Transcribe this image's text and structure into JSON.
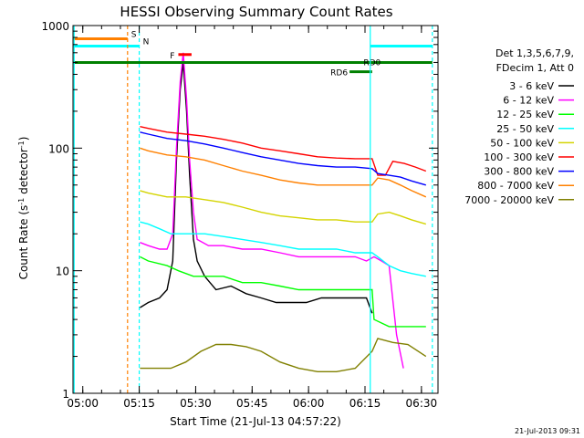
{
  "chart_data": {
    "type": "line",
    "title": "HESSI Observing Summary Count Rates",
    "xlabel": "Start Time (21-Jul-13 04:57:22)",
    "ylabel_main": "Count Rate (s",
    "ylabel_sup1": "-1",
    "ylabel_mid": " detector",
    "ylabel_sup2": "-1",
    "ylabel_end": ")",
    "x_unit": "minutes since 04:57:22",
    "xlim": [
      0,
      97
    ],
    "ylim": [
      1,
      1000
    ],
    "yscale": "log",
    "x_ticks": [
      {
        "label": "05:00",
        "t": 2.6
      },
      {
        "label": "05:15",
        "t": 17.6
      },
      {
        "label": "05:30",
        "t": 32.6
      },
      {
        "label": "05:45",
        "t": 47.6
      },
      {
        "label": "06:00",
        "t": 62.6
      },
      {
        "label": "06:15",
        "t": 77.6
      },
      {
        "label": "06:30",
        "t": 92.6
      }
    ],
    "y_ticks": [
      {
        "label": "1",
        "value": 1
      },
      {
        "label": "10",
        "value": 10
      },
      {
        "label": "100",
        "value": 100
      },
      {
        "label": "1000",
        "value": 1000
      }
    ],
    "legend_header_1": "Det 1,3,5,6,7,9,",
    "legend_header_2": "FDecim 1, Att 0",
    "legend_position": "right",
    "series": [
      {
        "name": "3 - 6 keV",
        "color": "#000000",
        "points": [
          [
            17.8,
            5
          ],
          [
            20,
            5.5
          ],
          [
            23,
            6
          ],
          [
            25,
            7
          ],
          [
            26.5,
            12
          ],
          [
            27.5,
            80
          ],
          [
            28.5,
            300
          ],
          [
            29.3,
            500
          ],
          [
            30.2,
            200
          ],
          [
            31,
            60
          ],
          [
            32,
            18
          ],
          [
            33,
            12
          ],
          [
            35,
            9
          ],
          [
            38,
            7
          ],
          [
            42,
            7.5
          ],
          [
            46,
            6.5
          ],
          [
            50,
            6
          ],
          [
            54,
            5.5
          ],
          [
            58,
            5.5
          ],
          [
            62,
            5.5
          ],
          [
            66,
            6
          ],
          [
            70,
            6
          ],
          [
            74,
            6
          ],
          [
            78,
            6
          ],
          [
            79.5,
            4.5
          ]
        ]
      },
      {
        "name": "6 - 12 keV",
        "color": "#ff00ff",
        "points": [
          [
            17.8,
            17
          ],
          [
            20,
            16
          ],
          [
            23,
            15
          ],
          [
            25,
            15
          ],
          [
            26.5,
            20
          ],
          [
            27.5,
            100
          ],
          [
            28.5,
            350
          ],
          [
            29.3,
            600
          ],
          [
            30.2,
            250
          ],
          [
            31,
            80
          ],
          [
            32,
            30
          ],
          [
            33,
            18
          ],
          [
            36,
            16
          ],
          [
            40,
            16
          ],
          [
            45,
            15
          ],
          [
            50,
            15
          ],
          [
            55,
            14
          ],
          [
            60,
            13
          ],
          [
            65,
            13
          ],
          [
            70,
            13
          ],
          [
            75,
            13
          ],
          [
            78,
            12
          ],
          [
            80,
            13
          ],
          [
            82,
            12
          ],
          [
            84,
            11
          ],
          [
            86,
            3
          ],
          [
            87.8,
            1.6
          ]
        ]
      },
      {
        "name": "12 - 25 keV",
        "color": "#00ff00",
        "points": [
          [
            17.8,
            13
          ],
          [
            20,
            12
          ],
          [
            25,
            11
          ],
          [
            28,
            10
          ],
          [
            32,
            9
          ],
          [
            36,
            9
          ],
          [
            40,
            9
          ],
          [
            45,
            8
          ],
          [
            50,
            8
          ],
          [
            55,
            7.5
          ],
          [
            60,
            7
          ],
          [
            65,
            7
          ],
          [
            70,
            7
          ],
          [
            75,
            7
          ],
          [
            79.5,
            7
          ],
          [
            80,
            4
          ],
          [
            84,
            3.5
          ],
          [
            87,
            3.5
          ],
          [
            90,
            3.5
          ],
          [
            93.8,
            3.5
          ]
        ]
      },
      {
        "name": "25 - 50 keV",
        "color": "#00ffff",
        "points": [
          [
            17.8,
            25
          ],
          [
            20,
            24
          ],
          [
            23,
            22
          ],
          [
            26,
            20
          ],
          [
            30,
            20
          ],
          [
            35,
            20
          ],
          [
            40,
            19
          ],
          [
            45,
            18
          ],
          [
            50,
            17
          ],
          [
            55,
            16
          ],
          [
            60,
            15
          ],
          [
            65,
            15
          ],
          [
            70,
            15
          ],
          [
            75,
            14
          ],
          [
            79.5,
            14
          ],
          [
            81,
            13
          ],
          [
            84,
            11
          ],
          [
            87,
            10
          ],
          [
            90,
            9.5
          ],
          [
            93.8,
            9
          ]
        ]
      },
      {
        "name": "50 - 100 keV",
        "color": "#d4d400",
        "points": [
          [
            17.8,
            45
          ],
          [
            20,
            43
          ],
          [
            25,
            40
          ],
          [
            30,
            40
          ],
          [
            35,
            38
          ],
          [
            40,
            36
          ],
          [
            45,
            33
          ],
          [
            50,
            30
          ],
          [
            55,
            28
          ],
          [
            60,
            27
          ],
          [
            65,
            26
          ],
          [
            70,
            26
          ],
          [
            75,
            25
          ],
          [
            79.5,
            25
          ],
          [
            81,
            29
          ],
          [
            84,
            30
          ],
          [
            87,
            28
          ],
          [
            90,
            26
          ],
          [
            93.8,
            24
          ]
        ]
      },
      {
        "name": "100 - 300 keV",
        "color": "#ff0000",
        "points": [
          [
            17.8,
            150
          ],
          [
            20,
            145
          ],
          [
            25,
            135
          ],
          [
            30,
            130
          ],
          [
            35,
            125
          ],
          [
            40,
            118
          ],
          [
            45,
            110
          ],
          [
            50,
            100
          ],
          [
            55,
            95
          ],
          [
            60,
            90
          ],
          [
            65,
            85
          ],
          [
            70,
            83
          ],
          [
            75,
            82
          ],
          [
            79.5,
            82
          ],
          [
            81,
            60
          ],
          [
            83,
            60
          ],
          [
            85,
            78
          ],
          [
            88,
            75
          ],
          [
            91,
            70
          ],
          [
            93.8,
            65
          ]
        ]
      },
      {
        "name": "300 - 800 keV",
        "color": "#0000ff",
        "points": [
          [
            17.8,
            135
          ],
          [
            20,
            130
          ],
          [
            25,
            120
          ],
          [
            30,
            115
          ],
          [
            35,
            108
          ],
          [
            40,
            100
          ],
          [
            45,
            92
          ],
          [
            50,
            85
          ],
          [
            55,
            80
          ],
          [
            60,
            75
          ],
          [
            65,
            72
          ],
          [
            70,
            70
          ],
          [
            75,
            70
          ],
          [
            79.5,
            68
          ],
          [
            81,
            62
          ],
          [
            84,
            60
          ],
          [
            87,
            58
          ],
          [
            90,
            54
          ],
          [
            93.8,
            50
          ]
        ]
      },
      {
        "name": "800 - 7000 keV",
        "color": "#ff8000",
        "points": [
          [
            17.8,
            100
          ],
          [
            20,
            95
          ],
          [
            25,
            88
          ],
          [
            30,
            85
          ],
          [
            35,
            80
          ],
          [
            40,
            72
          ],
          [
            45,
            65
          ],
          [
            50,
            60
          ],
          [
            55,
            55
          ],
          [
            60,
            52
          ],
          [
            65,
            50
          ],
          [
            70,
            50
          ],
          [
            75,
            50
          ],
          [
            79.5,
            50
          ],
          [
            81,
            57
          ],
          [
            84,
            55
          ],
          [
            87,
            50
          ],
          [
            90,
            45
          ],
          [
            93.8,
            40
          ]
        ]
      },
      {
        "name": "7000 - 20000 keV",
        "color": "#808000",
        "points": [
          [
            17.8,
            1.6
          ],
          [
            22,
            1.6
          ],
          [
            26,
            1.6
          ],
          [
            30,
            1.8
          ],
          [
            34,
            2.2
          ],
          [
            38,
            2.5
          ],
          [
            42,
            2.5
          ],
          [
            46,
            2.4
          ],
          [
            50,
            2.2
          ],
          [
            55,
            1.8
          ],
          [
            60,
            1.6
          ],
          [
            65,
            1.5
          ],
          [
            70,
            1.5
          ],
          [
            75,
            1.6
          ],
          [
            79.5,
            2.2
          ],
          [
            81,
            2.8
          ],
          [
            85,
            2.6
          ],
          [
            89,
            2.5
          ],
          [
            93.8,
            2
          ]
        ]
      }
    ],
    "annotations": [
      {
        "label": "S",
        "color": "#ff8000",
        "t_start": 0,
        "t_end": 14.5,
        "value": 780
      },
      {
        "label": "N",
        "color": "#00ffff",
        "t_start": 0,
        "t_end": 17.6,
        "value": 680
      },
      {
        "label": "N",
        "color": "#00ffff",
        "t_start": 79,
        "t_end": 95.5,
        "value": 680
      },
      {
        "label": "F",
        "color": "#ff0000",
        "t_start": 28,
        "t_end": 31.5,
        "value": 580
      },
      {
        "label": "RD0",
        "color": "#008000",
        "t_start": 0,
        "t_end": 95.5,
        "value": 500
      },
      {
        "label": "RD6",
        "color": "#008000",
        "t_start": 73.5,
        "t_end": 79.5,
        "value": 420
      }
    ],
    "vertical_markers": [
      {
        "t": 0.3,
        "color": "#00ffff",
        "style": "solid"
      },
      {
        "t": 14.5,
        "color": "#ff8000",
        "style": "dashed"
      },
      {
        "t": 17.6,
        "color": "#00ffff",
        "style": "dashed"
      },
      {
        "t": 79,
        "color": "#00ffff",
        "style": "solid"
      },
      {
        "t": 95.5,
        "color": "#00ffff",
        "style": "dashed"
      }
    ],
    "timestamp": "21-Jul-2013 09:31"
  }
}
